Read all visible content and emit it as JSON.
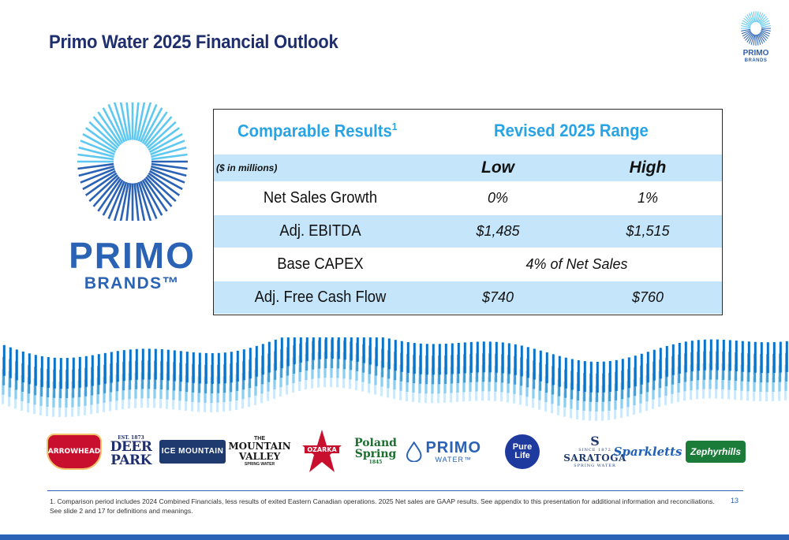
{
  "slide": {
    "title": "Primo Water 2025 Financial Outlook",
    "page_number": "13"
  },
  "corner_logo": {
    "name": "PRIMO",
    "sub": "BRANDS"
  },
  "big_logo": {
    "name": "PRIMO",
    "sub": "BRANDS™"
  },
  "table": {
    "header_left": "Comparable Results",
    "header_left_sup": "1",
    "header_right": "Revised 2025 Range",
    "units": "($ in millions)",
    "col_low": "Low",
    "col_high": "High",
    "rows": [
      {
        "label": "Net Sales Growth",
        "low": "0%",
        "high": "1%"
      },
      {
        "label": "Adj. EBITDA",
        "low": "$1,485",
        "high": "$1,515"
      },
      {
        "label": "Base CAPEX",
        "span": "4% of Net Sales"
      },
      {
        "label": "Adj. Free Cash Flow",
        "low": "$740",
        "high": "$760"
      }
    ]
  },
  "brands": {
    "arrowhead": "ARROWHEAD",
    "deerpark_top": "EST. 1873",
    "deerpark_a": "DEER",
    "deerpark_b": "PARK",
    "icemountain": "ICE MOUNTAIN",
    "mtn_a": "THE",
    "mtn_b": "MOUNTAIN",
    "mtn_c": "VALLEY",
    "mtn_d": "SPRING WATER",
    "ozarka": "OZARKA",
    "poland_a": "Poland",
    "poland_b": "Spring",
    "poland_c": "1845",
    "primowater_name": "PRIMO",
    "primowater_sub": "WATER™",
    "purelife_a": "Pure",
    "purelife_b": "Life",
    "saratoga_s": "S",
    "saratoga_a": "SINCE 1872",
    "saratoga_b": "SARATOGA",
    "saratoga_c": "SPRING WATER",
    "sparkletts": "Sparkletts",
    "zephyrhills": "Zephyrhills"
  },
  "footnote": "1. Comparison period includes 2024 Combined Financials, less results of exited Eastern Canadian operations. 2025 Net sales are GAAP results. See appendix to this presentation for additional information and reconciliations. See slide 2 and 17 for definitions and meanings.",
  "colors": {
    "title": "#1f2f6e",
    "accent": "#28a3e4",
    "brand_blue": "#2a62b5",
    "row_shade": "#c5e6fa"
  }
}
